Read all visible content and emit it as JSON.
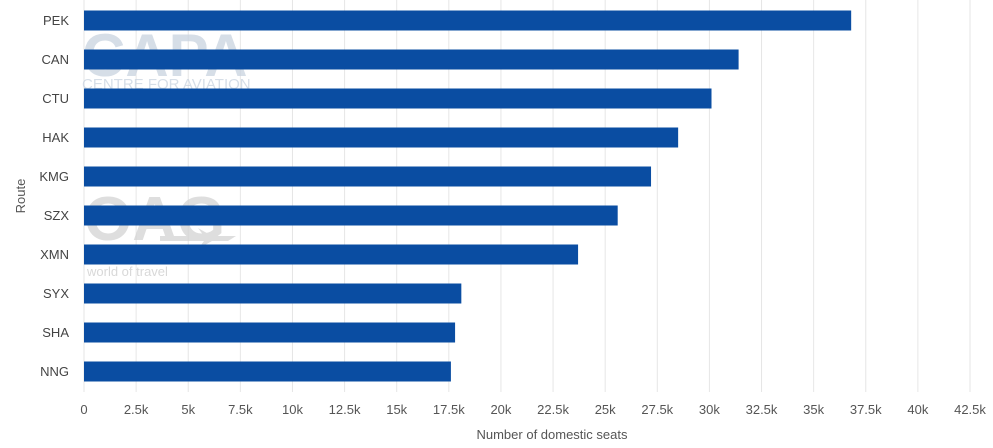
{
  "chart_data": {
    "type": "bar",
    "orientation": "horizontal",
    "categories": [
      "PEK",
      "CAN",
      "CTU",
      "HAK",
      "KMG",
      "SZX",
      "XMN",
      "SYX",
      "SHA",
      "NNG"
    ],
    "values": [
      36800,
      31400,
      30100,
      28500,
      27200,
      25600,
      23700,
      18100,
      17800,
      17600
    ],
    "xlabel": "Number of domestic seats",
    "ylabel": "Route",
    "xlim": [
      0,
      42500
    ],
    "xticks": [
      0,
      2500,
      5000,
      7500,
      10000,
      12500,
      15000,
      17500,
      20000,
      22500,
      25000,
      27500,
      30000,
      32500,
      35000,
      37500,
      40000,
      42500
    ],
    "xtick_labels": [
      "0",
      "2.5k",
      "5k",
      "7.5k",
      "10k",
      "12.5k",
      "15k",
      "17.5k",
      "20k",
      "22.5k",
      "25k",
      "27.5k",
      "30k",
      "32.5k",
      "35k",
      "37.5k",
      "40k",
      "42.5k"
    ],
    "grid": "vertical",
    "legend": "none",
    "bar_color": "#0a4da2"
  },
  "watermarks": {
    "capa_name": "CAPA",
    "capa_sub": "CENTRE FOR AVIATION",
    "oag_name": "OAG",
    "oag_sub": "world of travel",
    "color": "#c9d3e0"
  }
}
